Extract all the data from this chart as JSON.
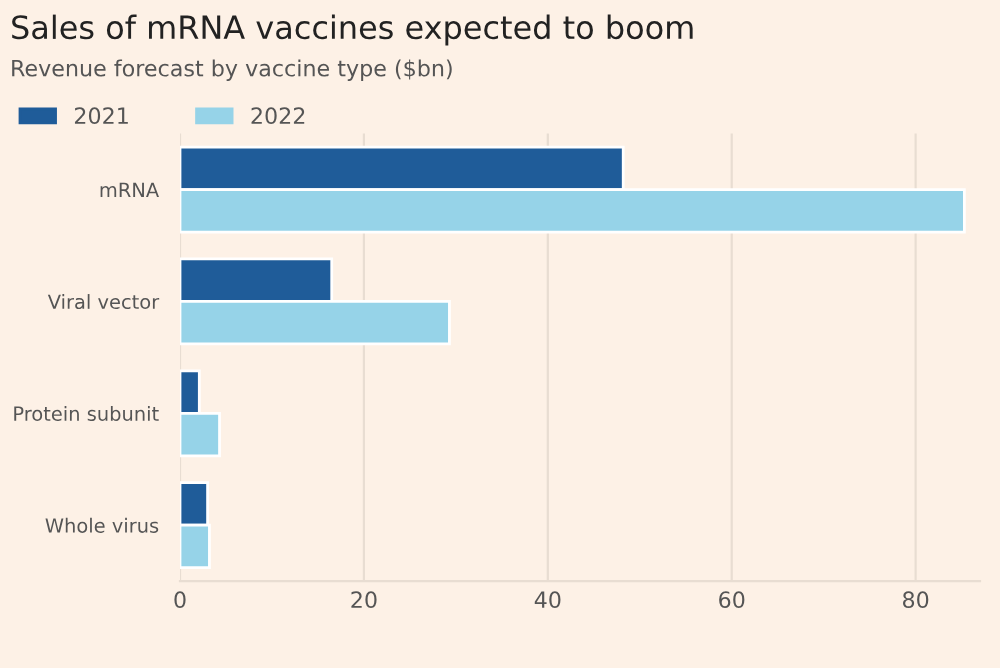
{
  "chart_data": {
    "type": "bar",
    "orientation": "horizontal",
    "title": "Sales of mRNA vaccines expected to boom",
    "subtitle": "Revenue forecast by vaccine type ($bn)",
    "categories": [
      "mRNA",
      "Viral vector",
      "Protein subunit",
      "Whole virus"
    ],
    "series": [
      {
        "name": "2021",
        "color": "#1f5c99",
        "values": [
          48.2,
          16.5,
          2.1,
          3.0
        ]
      },
      {
        "name": "2022",
        "color": "#96d3e8",
        "values": [
          85.3,
          29.3,
          4.3,
          3.2
        ]
      }
    ],
    "xlim": [
      0,
      87
    ],
    "xticks": [
      0,
      20,
      40,
      60,
      80
    ],
    "grid": "x",
    "legend": "top left"
  }
}
